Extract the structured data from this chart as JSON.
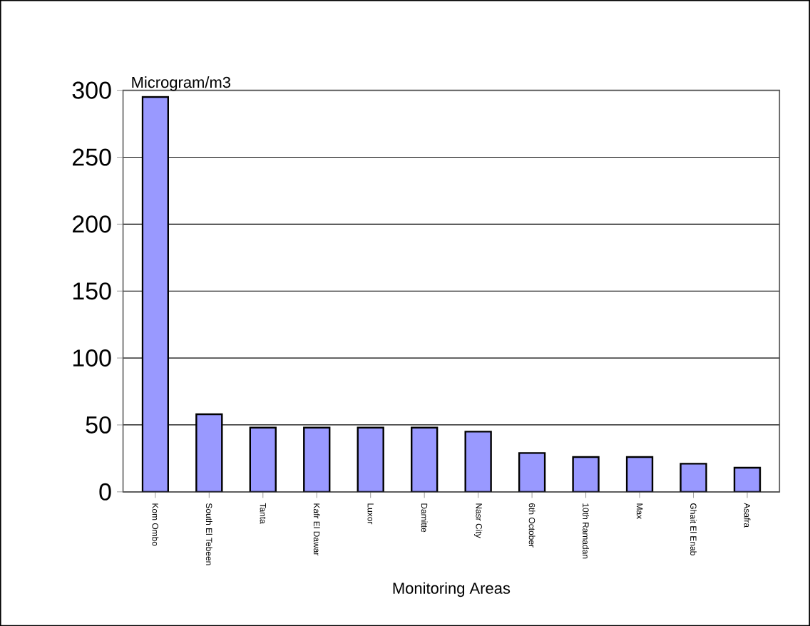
{
  "chart_data": {
    "type": "bar",
    "ylabel": "Microgram/m3",
    "xlabel": "Monitoring Areas",
    "categories": [
      "Kom Ombo",
      "South El Tebeen",
      "Tanta",
      "Kafr El Dawar",
      "Luxor",
      "Damitte",
      "Nasr City",
      "6th October",
      "10th Ramadan",
      "Max",
      "Ghait El Enab",
      "Asafra"
    ],
    "values": [
      295,
      58,
      48,
      48,
      48,
      48,
      45,
      29,
      26,
      26,
      21,
      18
    ],
    "color": "#9999ff",
    "ylim": [
      0,
      300
    ],
    "yticks": [
      0,
      50,
      100,
      150,
      200,
      250,
      300
    ],
    "grid": "y"
  }
}
